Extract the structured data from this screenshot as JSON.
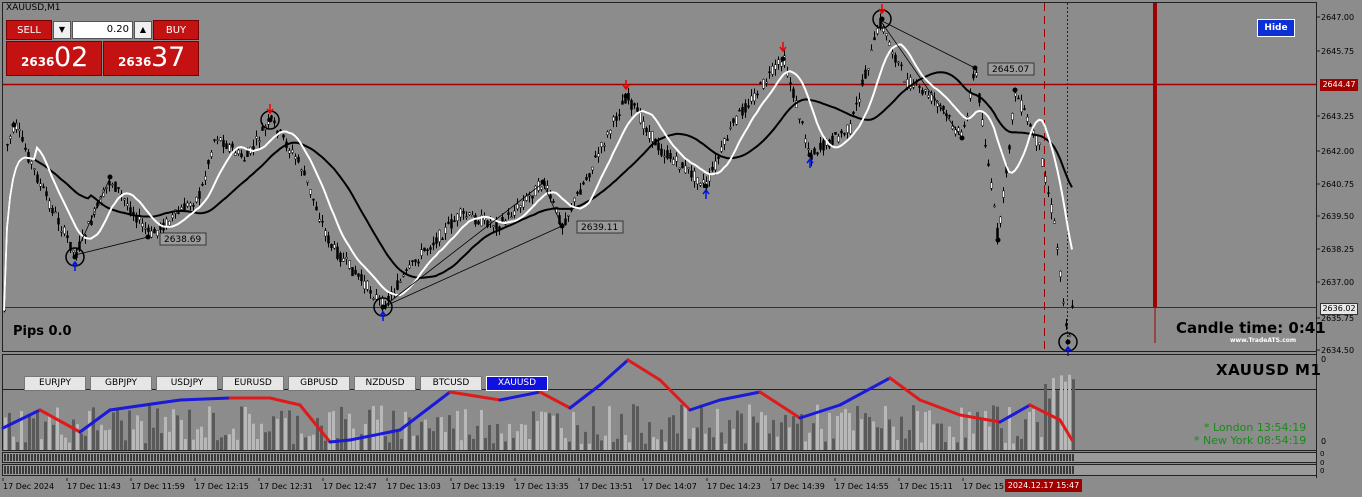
{
  "window": {
    "title": "XAUUSD,M1"
  },
  "trade_panel": {
    "sell_label": "SELL",
    "buy_label": "BUY",
    "lot_value": "0.20",
    "sell_price_main": "2636",
    "sell_price_big": "02",
    "buy_price_main": "2636",
    "buy_price_big": "37"
  },
  "hide_label": "Hide",
  "pips_label": "Pips 0.0",
  "candle_time_label": "Candle time:  0:41",
  "brand_label": "www.TradeATS.com",
  "symbol_label": "XAUUSD  M1",
  "sessions": [
    {
      "label": "* London   13:54:19"
    },
    {
      "label": "* New York   08:54:19"
    }
  ],
  "symbol_tabs": [
    "EURJPY",
    "GBPJPY",
    "USDJPY",
    "EURUSD",
    "GBPUSD",
    "NZDUSD",
    "BTCUSD",
    "XAUUSD"
  ],
  "active_tab": "XAUUSD",
  "price_axis": [
    "2647.00",
    "2645.75",
    "2644.47",
    "2643.25",
    "2642.00",
    "2640.75",
    "2639.50",
    "2638.25",
    "2637.00",
    "2636.02",
    "2635.75",
    "2634.50"
  ],
  "current_price": "2636.02",
  "red_line_price": "2644.47",
  "annotations": [
    "2638.69",
    "2639.11",
    "2645.07"
  ],
  "sub_axis": [
    "0",
    "0"
  ],
  "time_axis": [
    "17 Dec 2024",
    "17 Dec 11:43",
    "17 Dec 11:59",
    "17 Dec 12:15",
    "17 Dec 12:31",
    "17 Dec 12:47",
    "17 Dec 13:03",
    "17 Dec 13:19",
    "17 Dec 13:35",
    "17 Dec 13:51",
    "17 Dec 14:07",
    "17 Dec 14:23",
    "17 Dec 14:39",
    "17 Dec 14:55",
    "17 Dec 15:11",
    "17 Dec 15"
  ],
  "time_highlight": "2024.12.17 15:47",
  "colors": {
    "candle": "#000000",
    "ma_fast": "#ffffff",
    "ma_slow": "#000000",
    "level_line": "#a00000",
    "osc_up": "#1a1ad8",
    "osc_down": "#e01a1a",
    "button": "#c41111"
  }
}
